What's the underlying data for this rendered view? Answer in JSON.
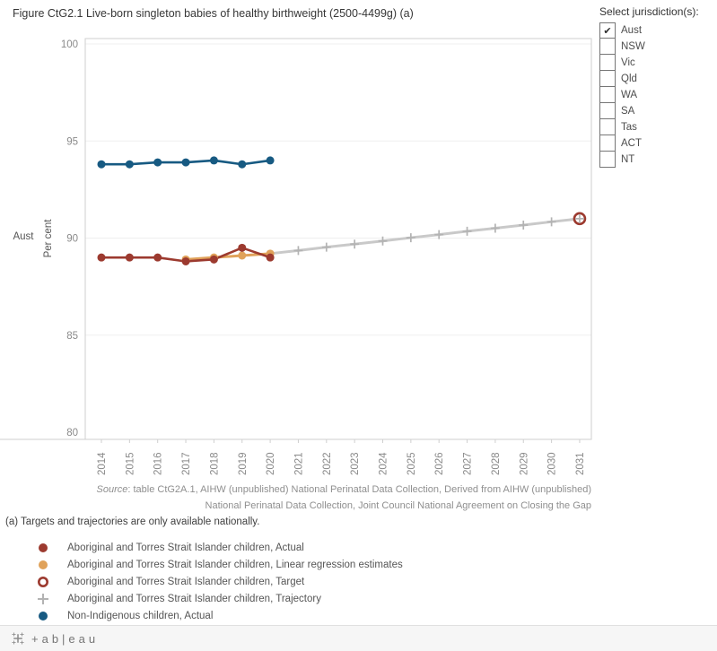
{
  "title": "Figure CtG2.1 Live-born singleton babies of healthy birthweight (2500-4499g) (a)",
  "jurisdiction_panel": {
    "label": "Select jurisdiction(s):",
    "options": [
      {
        "label": "Aust",
        "checked": true
      },
      {
        "label": "NSW",
        "checked": false
      },
      {
        "label": "Vic",
        "checked": false
      },
      {
        "label": "Qld",
        "checked": false
      },
      {
        "label": "WA",
        "checked": false
      },
      {
        "label": "SA",
        "checked": false
      },
      {
        "label": "Tas",
        "checked": false
      },
      {
        "label": "ACT",
        "checked": false
      },
      {
        "label": "NT",
        "checked": false
      }
    ]
  },
  "chart_data": {
    "type": "line",
    "title": "Figure CtG2.1 Live-born singleton babies of healthy birthweight (2500-4499g) (a)",
    "row_label": "Aust",
    "ylabel": "Per cent",
    "ylim": [
      80,
      100
    ],
    "yticks": [
      80,
      85,
      90,
      95,
      100
    ],
    "x": [
      2014,
      2015,
      2016,
      2017,
      2018,
      2019,
      2020,
      2021,
      2022,
      2023,
      2024,
      2025,
      2026,
      2027,
      2028,
      2029,
      2030,
      2031
    ],
    "grid": "horizontal-light",
    "legend_position": "bottom-left",
    "series": [
      {
        "name": "Aboriginal and Torres Strait Islander children, Target",
        "marker": "open-circle",
        "color": "#9c3a2f",
        "line": false,
        "x": [
          2031
        ],
        "values": [
          91.0
        ]
      },
      {
        "name": "Aboriginal and Torres Strait Islander children, Trajectory",
        "marker": "plus",
        "color": "#c9c9c9",
        "marker_color": "#b3b3b3",
        "line": true,
        "line_width": 3,
        "x": [
          2020,
          2021,
          2022,
          2023,
          2024,
          2025,
          2026,
          2027,
          2028,
          2029,
          2030,
          2031
        ],
        "values": [
          89.2,
          89.36,
          89.53,
          89.69,
          89.85,
          90.02,
          90.18,
          90.35,
          90.51,
          90.67,
          90.84,
          91.0
        ]
      },
      {
        "name": "Aboriginal and Torres Strait Islander children, Linear regression estimates",
        "marker": "circle",
        "color": "#e0a25a",
        "line": true,
        "line_width": 3,
        "x": [
          2017,
          2018,
          2019,
          2020
        ],
        "values": [
          88.9,
          89.0,
          89.1,
          89.2
        ]
      },
      {
        "name": "Aboriginal and Torres Strait Islander children, Actual",
        "marker": "circle",
        "color": "#9c3a2f",
        "line": true,
        "line_width": 2.6,
        "x": [
          2014,
          2015,
          2016,
          2017,
          2018,
          2019,
          2020
        ],
        "values": [
          89.0,
          89.0,
          89.0,
          88.8,
          88.9,
          89.5,
          89.0
        ]
      },
      {
        "name": "Non-Indigenous children, Actual",
        "marker": "circle",
        "color": "#175a82",
        "line": true,
        "line_width": 2.6,
        "x": [
          2014,
          2015,
          2016,
          2017,
          2018,
          2019,
          2020
        ],
        "values": [
          93.8,
          93.8,
          93.9,
          93.9,
          94.0,
          93.8,
          94.0
        ]
      }
    ]
  },
  "legend": [
    {
      "marker": "circle",
      "color": "#9c3a2f",
      "label": "Aboriginal and Torres Strait Islander children, Actual"
    },
    {
      "marker": "circle",
      "color": "#e0a25a",
      "label": "Aboriginal and Torres Strait Islander children, Linear regression estimates"
    },
    {
      "marker": "open-circle",
      "color": "#9c3a2f",
      "label": "Aboriginal and Torres Strait Islander children, Target"
    },
    {
      "marker": "plus",
      "color": "#b3b3b3",
      "label": "Aboriginal and Torres Strait Islander children, Trajectory"
    },
    {
      "marker": "circle",
      "color": "#175a82",
      "label": "Non-Indigenous children, Actual"
    }
  ],
  "source": {
    "prefix": "Source",
    "line1": ": table CtG2A.1, AIHW (unpublished) National Perinatal Data Collection, Derived from AIHW (unpublished)",
    "line2": "National Perinatal Data Collection, Joint Council National Agreement on Closing the Gap"
  },
  "footnote": "(a) Targets and trajectories are only available nationally.",
  "footer": {
    "logo_text": "+ab|eau"
  },
  "colors": {
    "indigenous_actual": "#9c3a2f",
    "regression": "#e0a25a",
    "trajectory": "#c9c9c9",
    "non_indigenous": "#175a82",
    "axis_text": "#8a8a8a",
    "plot_border": "#cfcfcf"
  }
}
